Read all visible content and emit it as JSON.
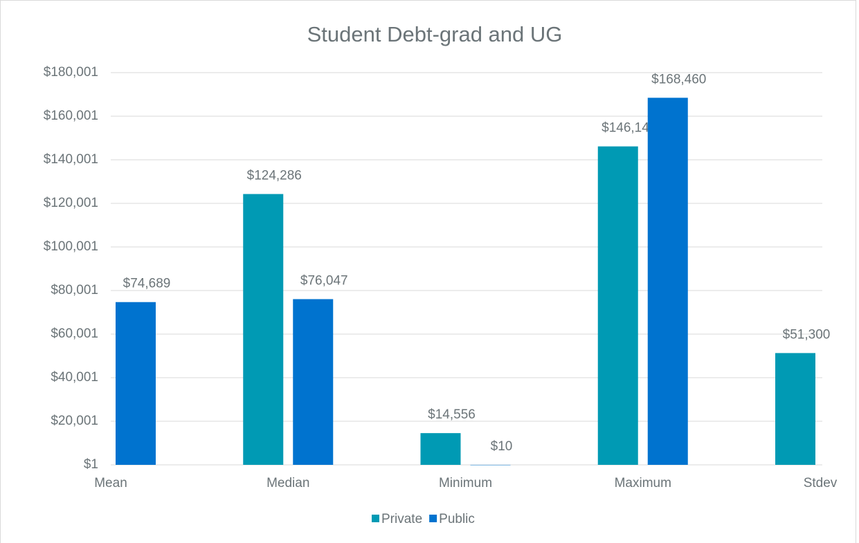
{
  "chart_data": {
    "type": "bar",
    "title": "Student Debt-grad and UG",
    "categories": [
      "Mean",
      "Median",
      "Minimum",
      "Maximum",
      "Stdev"
    ],
    "series": [
      {
        "name": "Private",
        "color": "#009ab4",
        "values": [
          null,
          124286,
          14556,
          146149,
          51300
        ],
        "value_labels": [
          null,
          "$124,286",
          "$14,556",
          "$146,149",
          "$51,300"
        ]
      },
      {
        "name": "Public",
        "color": "#0073cf",
        "values": [
          74689,
          76047,
          10,
          168460,
          null
        ],
        "value_labels": [
          "$74,689",
          "$76,047",
          "$10",
          "$168,460",
          null
        ]
      }
    ],
    "ylim": [
      1,
      180001
    ],
    "yticks": [
      {
        "value": 1,
        "label": "$1"
      },
      {
        "value": 20001,
        "label": "$20,001"
      },
      {
        "value": 40001,
        "label": "$40,001"
      },
      {
        "value": 60001,
        "label": "$60,001"
      },
      {
        "value": 80001,
        "label": "$80,001"
      },
      {
        "value": 100001,
        "label": "$100,001"
      },
      {
        "value": 120001,
        "label": "$120,001"
      },
      {
        "value": 140001,
        "label": "$140,001"
      },
      {
        "value": 160001,
        "label": "$160,001"
      },
      {
        "value": 180001,
        "label": "$180,001"
      }
    ],
    "grid": true,
    "legend": "bottom"
  }
}
